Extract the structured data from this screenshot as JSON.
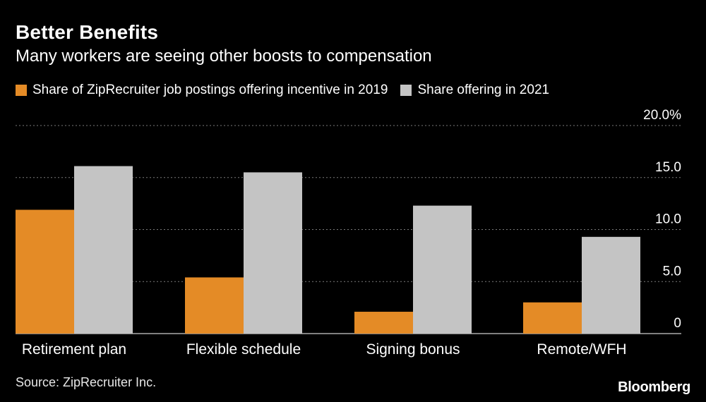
{
  "chart_data": {
    "type": "bar",
    "title": "Better Benefits",
    "subtitle": "Many workers are seeing other boosts to compensation",
    "categories": [
      "Retirement plan",
      "Flexible schedule",
      "Signing bonus",
      "Remote/WFH"
    ],
    "series": [
      {
        "name": "Share of ZipRecruiter job postings offering incentive in 2019",
        "color": "#e48b26",
        "values": [
          11.9,
          5.4,
          2.1,
          3.0
        ]
      },
      {
        "name": "Share offering in 2021",
        "color": "#c4c4c4",
        "values": [
          16.1,
          15.5,
          12.3,
          9.3
        ]
      }
    ],
    "yticks": [
      "0",
      "5.0",
      "10.0",
      "15.0",
      "20.0%"
    ],
    "ytick_values": [
      0,
      5,
      10,
      15,
      20
    ],
    "ylim": [
      0,
      20
    ],
    "ylabel": "",
    "xlabel": "",
    "grid": true,
    "gridline_color": "#7a7a7a",
    "legend_position": "top-left",
    "source": "Source: ZipRecruiter Inc.",
    "brand": "Bloomberg"
  }
}
